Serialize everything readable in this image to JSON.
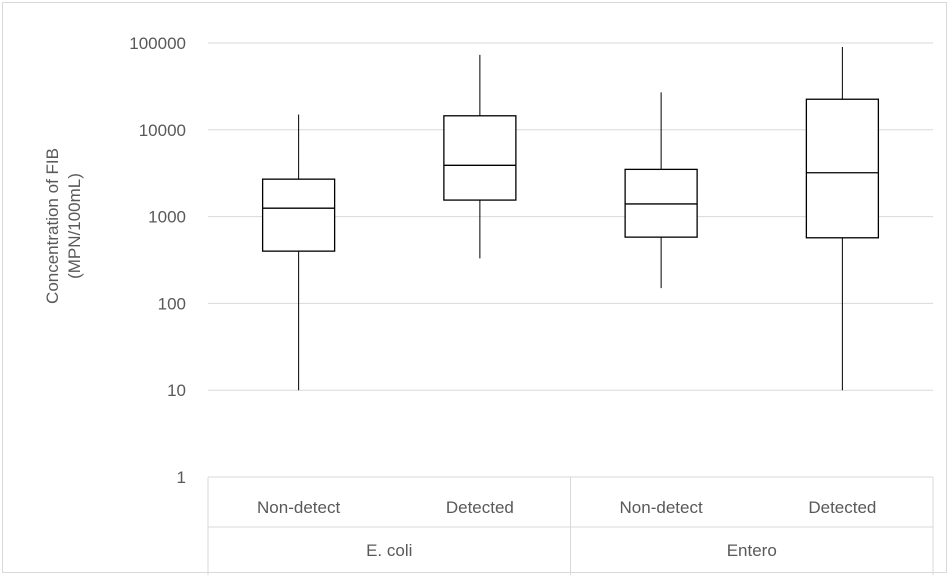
{
  "chart_data": {
    "type": "box",
    "title": "",
    "ylabel_lines": [
      "Concentration of FIB",
      "(MPN/100mL)"
    ],
    "xlabel": "",
    "yscale": "log",
    "ylim": [
      1,
      100000
    ],
    "yticks": [
      {
        "value": 1,
        "label": "1"
      },
      {
        "value": 10,
        "label": "10"
      },
      {
        "value": 100,
        "label": "100"
      },
      {
        "value": 1000,
        "label": "1000"
      },
      {
        "value": 10000,
        "label": "10000"
      },
      {
        "value": 100000,
        "label": "100000"
      }
    ],
    "grid": true,
    "groups": [
      {
        "name": "E. coli",
        "categories": [
          "Non-detect",
          "Detected"
        ]
      },
      {
        "name": "Entero",
        "categories": [
          "Non-detect",
          "Detected"
        ]
      }
    ],
    "boxes": [
      {
        "group": "E. coli",
        "category": "Non-detect",
        "min": 10,
        "q1": 400,
        "median": 1250,
        "q3": 2700,
        "max": 15000
      },
      {
        "group": "E. coli",
        "category": "Detected",
        "min": 330,
        "q1": 1550,
        "median": 3900,
        "q3": 14500,
        "max": 73000
      },
      {
        "group": "Entero",
        "category": "Non-detect",
        "min": 150,
        "q1": 580,
        "median": 1400,
        "q3": 3500,
        "max": 27000
      },
      {
        "group": "Entero",
        "category": "Detected",
        "min": 10,
        "q1": 570,
        "median": 3200,
        "q3": 22500,
        "max": 90000
      }
    ],
    "colors": {
      "box_stroke": "#000000",
      "grid": "#d9d9d9",
      "text": "#595959"
    }
  }
}
